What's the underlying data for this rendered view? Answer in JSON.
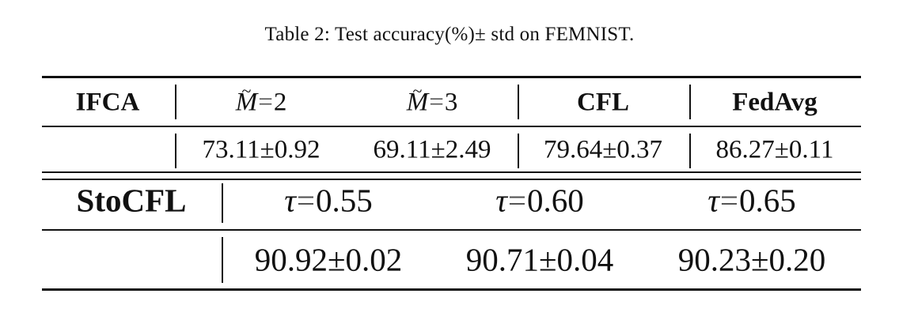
{
  "caption": "Table 2: Test accuracy(%)± std on FEMNIST.",
  "table1": {
    "header": {
      "method": "IFCA",
      "m2_var": "M",
      "m2_eq": "=",
      "m2_val": "2",
      "m3_var": "M",
      "m3_eq": "=",
      "m3_val": "3",
      "cfl": "CFL",
      "fedavg": "FedAvg"
    },
    "row": {
      "method": "",
      "m2": "73.11±0.92",
      "m3": "69.11±2.49",
      "cfl": "79.64±0.37",
      "fedavg": "86.27±0.11"
    }
  },
  "table2": {
    "header": {
      "method": "StoCFL",
      "t1_var": "τ",
      "t1_eq": "=",
      "t1_val": "0.55",
      "t2_var": "τ",
      "t2_eq": "=",
      "t2_val": "0.60",
      "t3_var": "τ",
      "t3_eq": "=",
      "t3_val": "0.65"
    },
    "row": {
      "method": "",
      "t1": "90.92±0.02",
      "t2": "90.71±0.04",
      "t3": "90.23±0.20"
    }
  }
}
